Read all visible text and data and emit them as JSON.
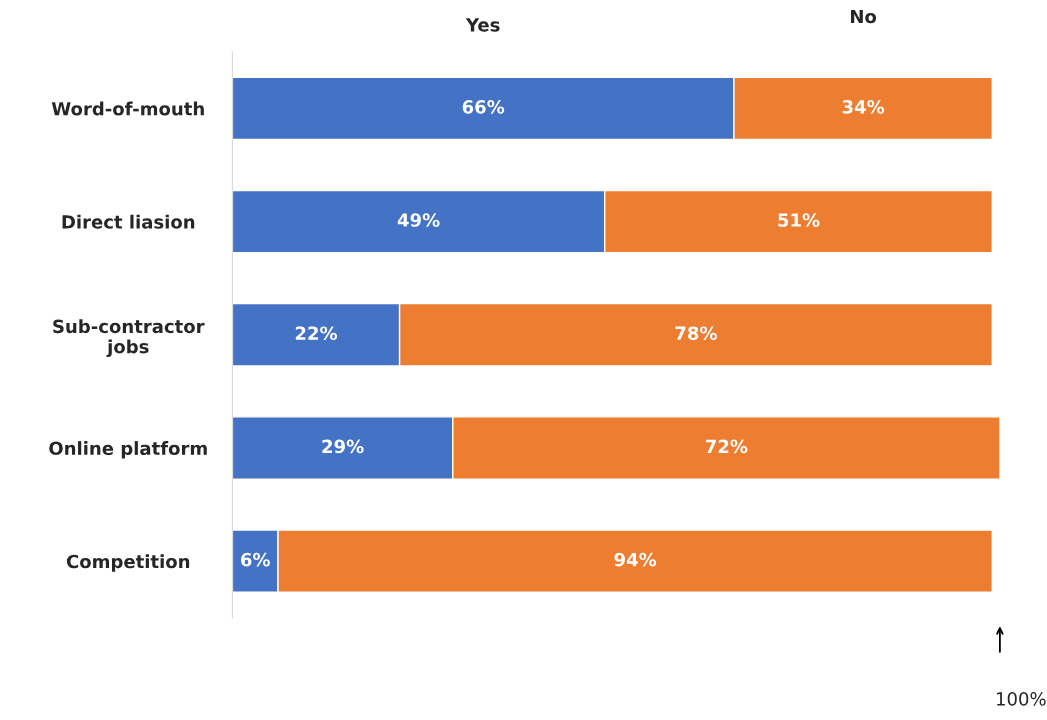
{
  "chart_data": {
    "type": "bar",
    "orientation": "horizontal",
    "stacked": true,
    "categories": [
      "Word-of-mouth",
      "Direct liasion",
      "Sub-contractor jobs",
      "Online platform",
      "Competition"
    ],
    "series": [
      {
        "name": "Yes",
        "color": "#4472c4",
        "values": [
          66,
          49,
          22,
          29,
          6
        ],
        "value_labels": [
          "66%",
          "49%",
          "22%",
          "29%",
          "6%"
        ]
      },
      {
        "name": "No",
        "color": "#ed7d31",
        "values": [
          34,
          51,
          78,
          72,
          94
        ],
        "value_labels": [
          "34%",
          "51%",
          "78%",
          "72%",
          "94%"
        ]
      }
    ],
    "legend": "top",
    "grid": false,
    "annotations": [
      "100%"
    ]
  }
}
